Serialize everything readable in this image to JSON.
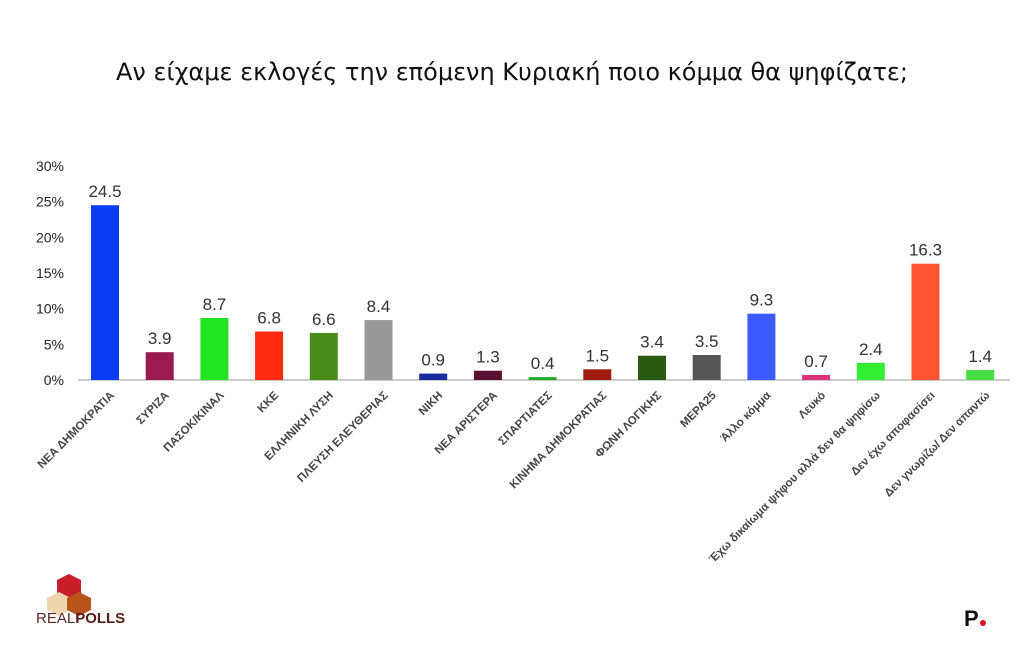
{
  "chart_data": {
    "type": "bar",
    "title": "Αν είχαμε εκλογές την επόμενη Κυριακή ποιο κόμμα θα ψηφίζατε;",
    "xlabel": "",
    "ylabel": "",
    "ylim": [
      0,
      30
    ],
    "yticks": [
      "0%",
      "5%",
      "10%",
      "15%",
      "20%",
      "25%",
      "30%"
    ],
    "categories": [
      "ΝΕΑ ΔΗΜΟΚΡΑΤΙΑ",
      "ΣΥΡΙΖΑ",
      "ΠΑΣΟΚ/ΚΙΝΑΛ",
      "ΚΚΕ",
      "ΕΛΛΗΝΙΚΗ ΛΥΣΗ",
      "ΠΛΕΥΣΗ ΕΛΕΥΘΕΡΙΑΣ",
      "ΝΙΚΗ",
      "ΝΕΑ ΑΡΙΣΤΕΡΑ",
      "ΣΠΑΡΤΙΑΤΕΣ",
      "ΚΙΝΗΜΑ ΔΗΜΟΚΡΑΤΙΑΣ",
      "ΦΩΝΗ ΛΟΓΙΚΗΣ",
      "ΜΕΡΑ25",
      "Άλλο κόμμα",
      "Λευκό",
      "Έχω δικαίωμα ψήφου αλλά δεν θα ψηφίσω",
      "Δεν έχω αποφασίσει",
      "Δεν γνωρίζω/ Δεν απαντώ"
    ],
    "values": [
      24.5,
      3.9,
      8.7,
      6.8,
      6.6,
      8.4,
      0.9,
      1.3,
      0.4,
      1.5,
      3.4,
      3.5,
      9.3,
      0.7,
      2.4,
      16.3,
      1.4
    ],
    "colors": [
      "#0b3cf5",
      "#9b1b50",
      "#22e622",
      "#ff2a10",
      "#4a8c1a",
      "#999999",
      "#1a2aa0",
      "#5a1030",
      "#22aa22",
      "#a01a10",
      "#2a5a10",
      "#555555",
      "#3a5aff",
      "#e0307a",
      "#33ee33",
      "#ff5533",
      "#44dd44"
    ],
    "grid": false,
    "legend": "none"
  },
  "logos": {
    "left": "REALPOLLS",
    "right": "P."
  }
}
